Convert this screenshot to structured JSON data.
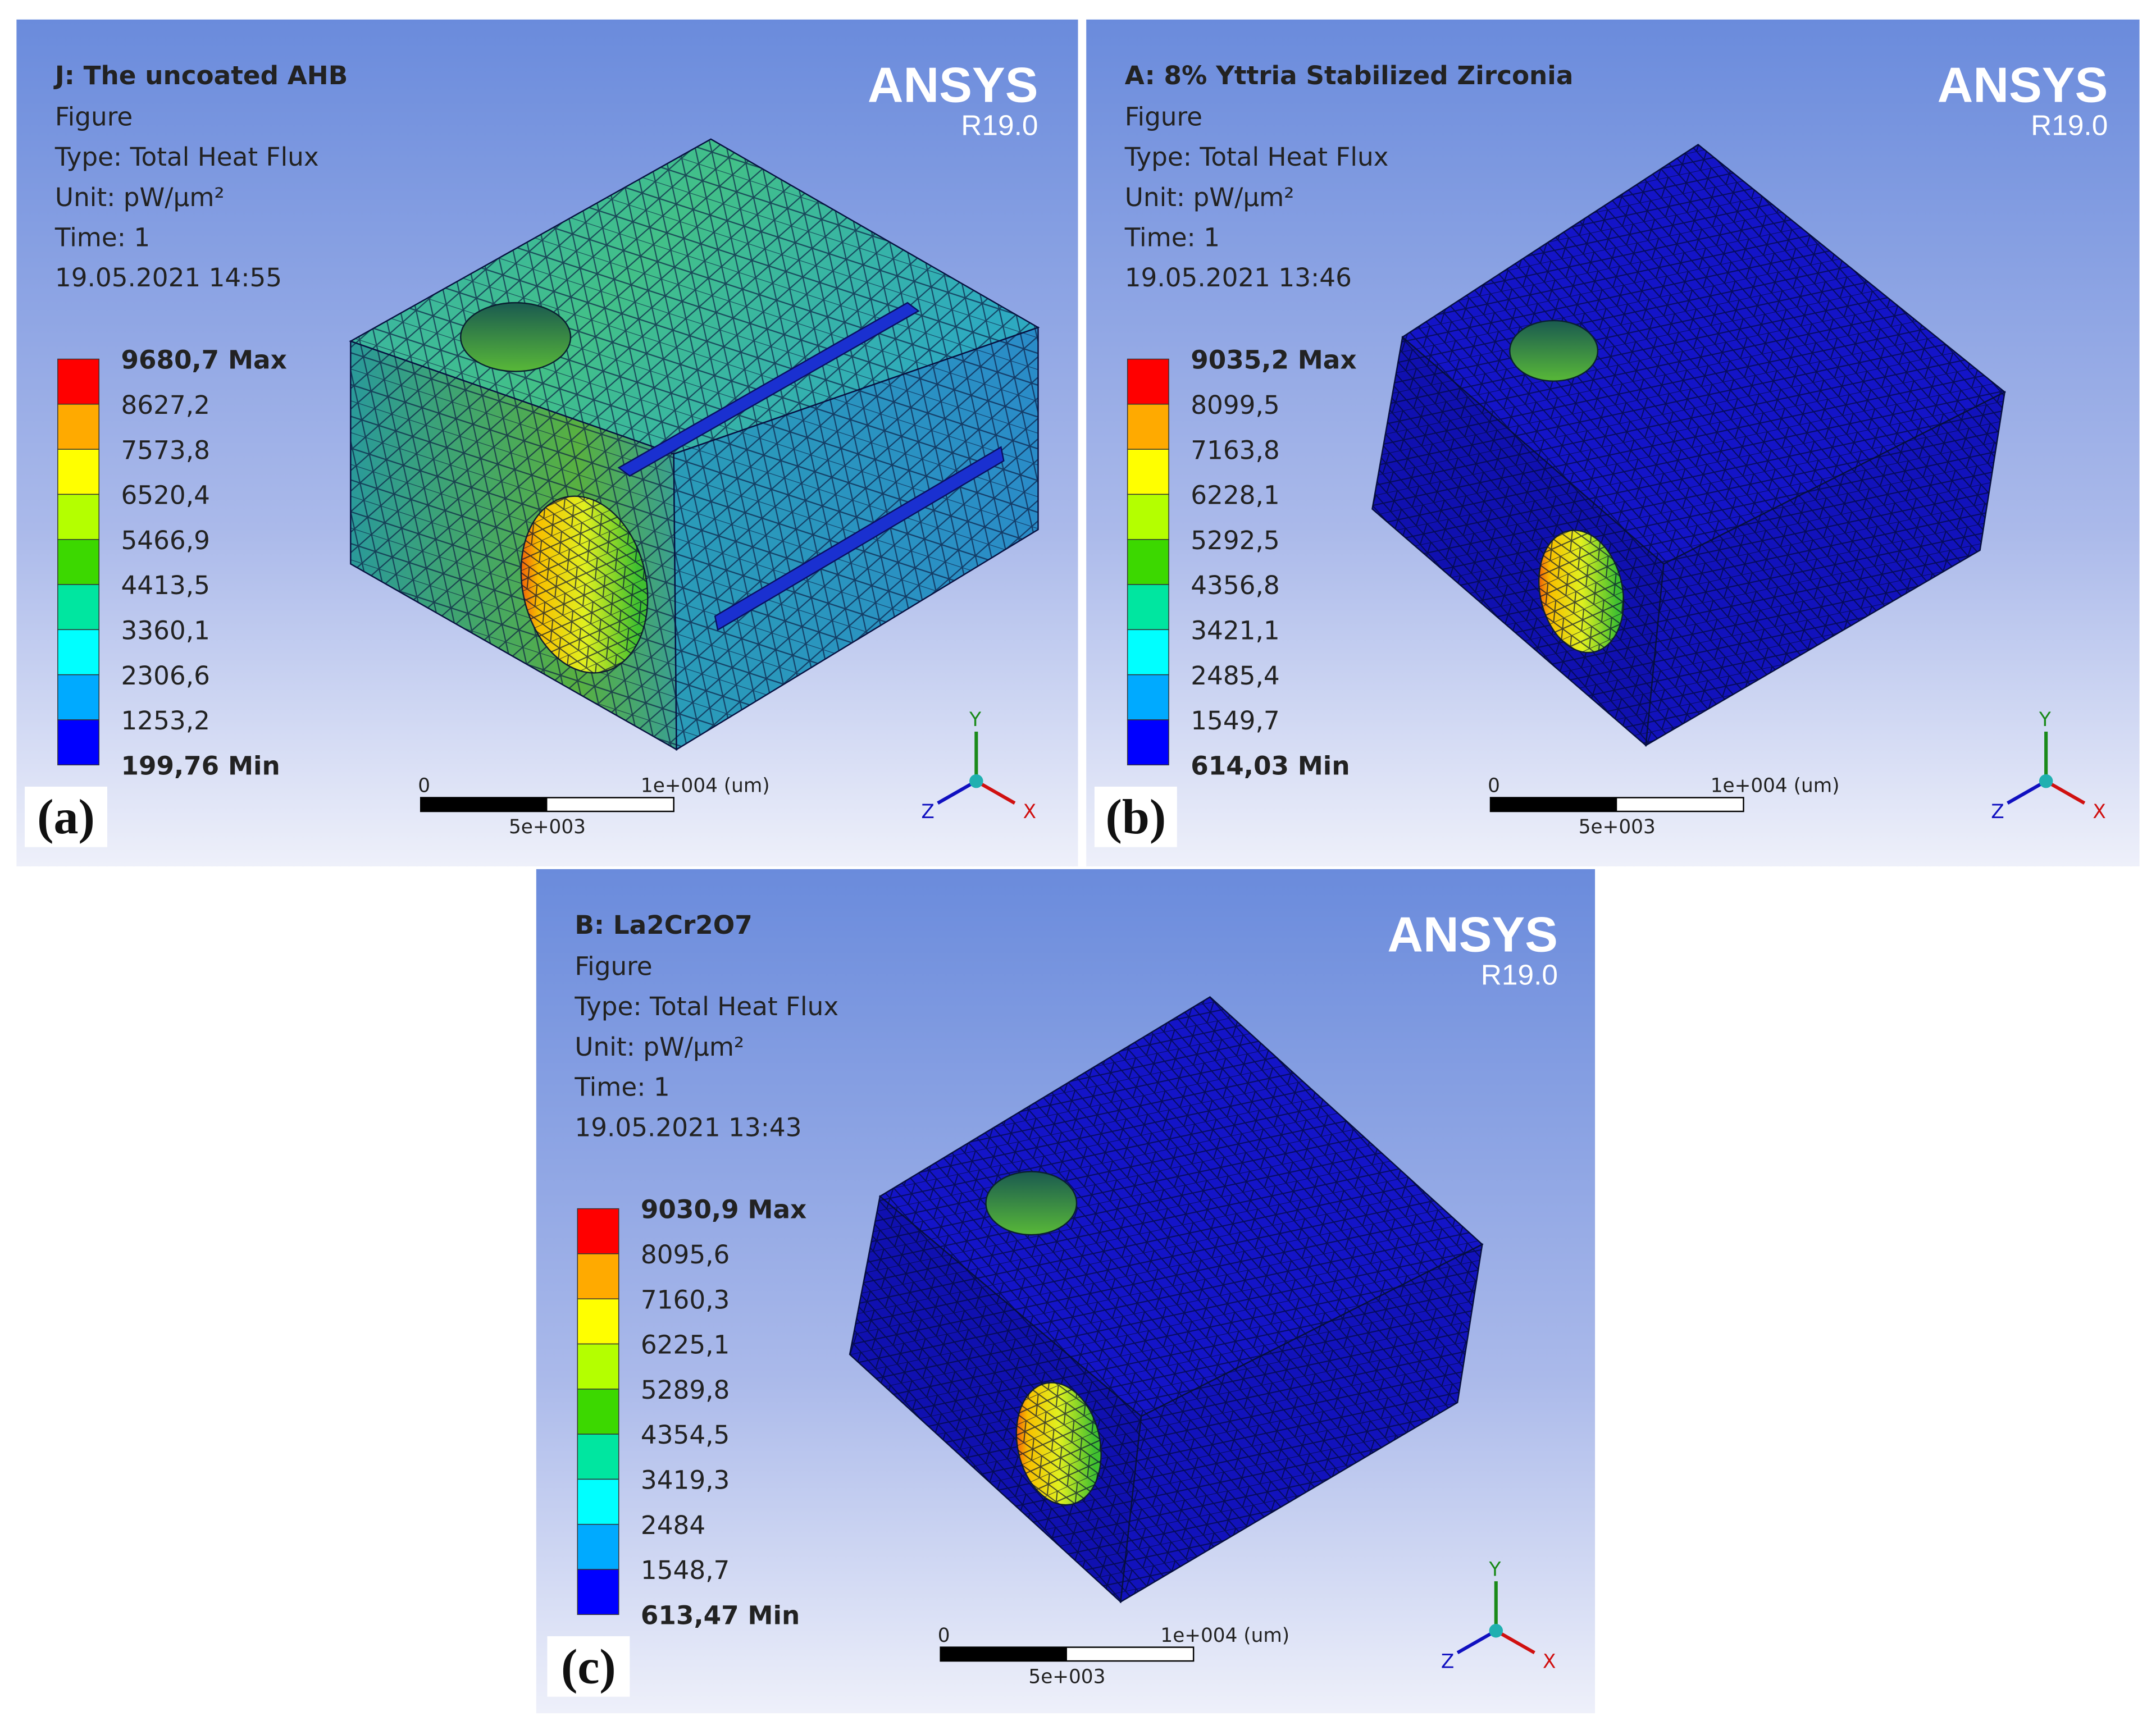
{
  "panels": [
    {
      "label": "(a)",
      "title": "J: The uncoated AHB",
      "lines": [
        "Figure",
        "Type: Total Heat Flux",
        "Unit: pW/µm²",
        "Time: 1",
        "19.05.2021 14:55"
      ],
      "brand": "ANSYS",
      "version": "R19.0",
      "legend": [
        "9680,7 Max",
        "8627,2",
        "7573,8",
        "6520,4",
        "5466,9",
        "4413,5",
        "3360,1",
        "2306,6",
        "1253,2",
        "199,76 Min"
      ],
      "scale": {
        "zero": "0",
        "max": "1e+004 (um)",
        "mid": "5e+003"
      },
      "axes": [
        "Y",
        "Z",
        "X"
      ]
    },
    {
      "label": "(b)",
      "title": "A: 8% Yttria Stabilized Zirconia",
      "lines": [
        "Figure",
        "Type: Total Heat Flux",
        "Unit: pW/µm²",
        "Time: 1",
        "19.05.2021 13:46"
      ],
      "brand": "ANSYS",
      "version": "R19.0",
      "legend": [
        "9035,2 Max",
        "8099,5",
        "7163,8",
        "6228,1",
        "5292,5",
        "4356,8",
        "3421,1",
        "2485,4",
        "1549,7",
        "614,03 Min"
      ],
      "scale": {
        "zero": "0",
        "max": "1e+004 (um)",
        "mid": "5e+003"
      },
      "axes": [
        "Y",
        "Z",
        "X"
      ]
    },
    {
      "label": "(c)",
      "title": "B: La2Cr2O7",
      "lines": [
        "Figure",
        "Type: Total Heat Flux",
        "Unit: pW/µm²",
        "Time: 1",
        "19.05.2021 13:43"
      ],
      "brand": "ANSYS",
      "version": "R19.0",
      "legend": [
        "9030,9 Max",
        "8095,6",
        "7160,3",
        "6225,1",
        "5289,8",
        "4354,5",
        "3419,3",
        "2484",
        "1548,7",
        "613,47 Min"
      ],
      "scale": {
        "zero": "0",
        "max": "1e+004 (um)",
        "mid": "5e+003"
      },
      "axes": [
        "Y",
        "Z",
        "X"
      ]
    }
  ]
}
